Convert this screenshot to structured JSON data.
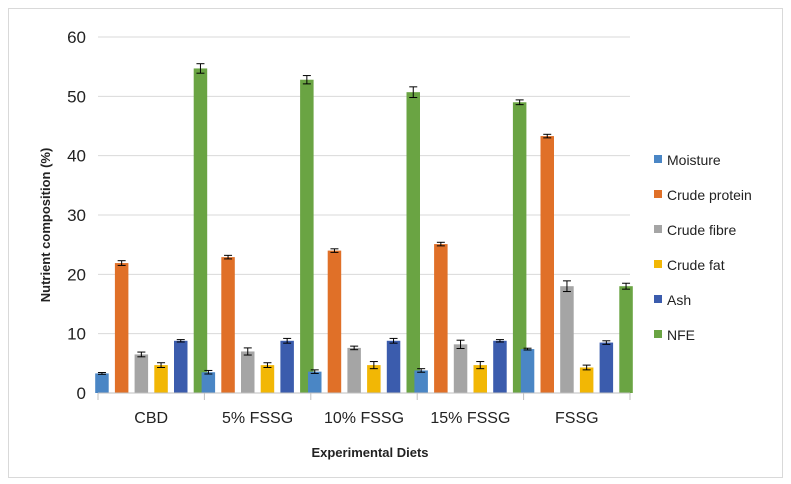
{
  "chart_data": {
    "type": "bar",
    "title": "",
    "xlabel": "Experimental Diets",
    "ylabel": "Nutrient  composition (%)",
    "ylim": [
      0,
      60
    ],
    "yticks": [
      0,
      10,
      20,
      30,
      40,
      50,
      60
    ],
    "grid": "horizontal",
    "legend_position": "right",
    "categories": [
      "CBD",
      "5% FSSG",
      "10% FSSG",
      "15% FSSG",
      "FSSG"
    ],
    "series": [
      {
        "name": "Moisture",
        "color": "#4a86c5",
        "values": [
          3.3,
          3.5,
          3.6,
          3.8,
          7.4
        ],
        "errors": [
          0.15,
          0.3,
          0.3,
          0.3,
          0.15
        ]
      },
      {
        "name": "Crude protein",
        "color": "#e07028",
        "values": [
          21.9,
          22.9,
          24.0,
          25.1,
          43.3
        ],
        "errors": [
          0.4,
          0.3,
          0.3,
          0.3,
          0.3
        ]
      },
      {
        "name": "Crude fibre",
        "color": "#a5a5a5",
        "values": [
          6.5,
          7.0,
          7.6,
          8.2,
          18.0
        ],
        "errors": [
          0.4,
          0.6,
          0.3,
          0.7,
          0.9
        ]
      },
      {
        "name": "Crude fat",
        "color": "#f2b705",
        "values": [
          4.7,
          4.7,
          4.7,
          4.7,
          4.3
        ],
        "errors": [
          0.4,
          0.4,
          0.6,
          0.6,
          0.4
        ]
      },
      {
        "name": "Ash",
        "color": "#3b5cad",
        "values": [
          8.8,
          8.8,
          8.8,
          8.8,
          8.5
        ],
        "errors": [
          0.2,
          0.4,
          0.4,
          0.2,
          0.3
        ]
      },
      {
        "name": "NFE",
        "color": "#6aa443",
        "values": [
          54.7,
          52.8,
          50.7,
          49.0,
          18.0
        ],
        "errors": [
          0.8,
          0.7,
          0.9,
          0.4,
          0.5
        ]
      }
    ]
  }
}
